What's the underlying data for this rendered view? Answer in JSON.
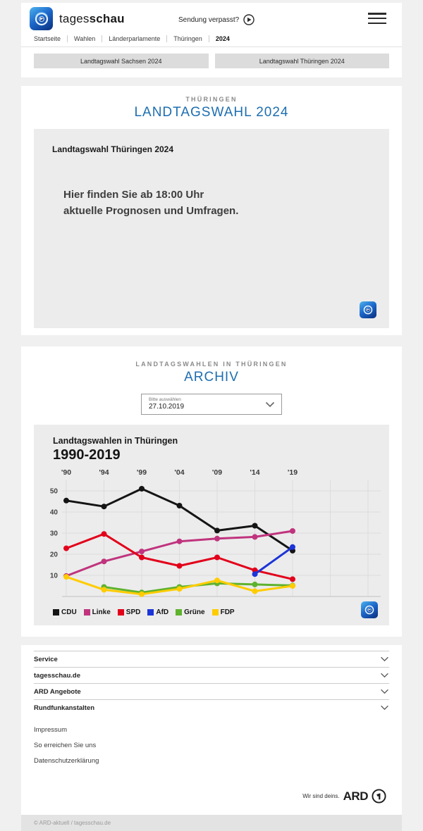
{
  "colors": {
    "brand_blue": "#1d6eb0",
    "page_bg": "#f0f0f0",
    "box_gray": "#ececec"
  },
  "icons": {
    "logo": "tagesschau-globe-icon",
    "play": "play-circle-icon",
    "menu": "hamburger-icon",
    "chevron": "chevron-down-icon",
    "ard": "ard-circle-one-icon"
  },
  "header": {
    "brand_light": "tages",
    "brand_bold": "schau",
    "missed_show": "Sendung verpasst?",
    "nav": [
      "Startseite",
      "Wahlen",
      "Länderparlamente",
      "Thüringen",
      "2024"
    ]
  },
  "quick_links": [
    "Landtagswahl Sachsen 2024",
    "Landtagswahl Thüringen 2024"
  ],
  "election_card": {
    "kicker": "THÜRINGEN",
    "title": "LANDTAGSWAHL 2024",
    "box_title": "Landtagswahl Thüringen 2024",
    "message_line1": "Hier finden Sie ab 18:00 Uhr",
    "message_line2": "aktuelle Prognosen und Umfragen."
  },
  "archive_card": {
    "kicker": "LANDTAGSWAHLEN IN THÜRINGEN",
    "title": "ARCHIV",
    "select": {
      "label": "Bitte auswählen",
      "value": "27.10.2019"
    }
  },
  "chart_data": {
    "type": "line",
    "title": "Landtagswahlen in Thüringen",
    "subtitle": "1990-2019",
    "categories": [
      "'90",
      "'94",
      "'99",
      "'04",
      "'09",
      "'14",
      "'19"
    ],
    "series": [
      {
        "name": "CDU",
        "color": "#141414",
        "values": [
          45.4,
          42.6,
          51.0,
          43.0,
          31.2,
          33.5,
          21.7
        ]
      },
      {
        "name": "Linke",
        "color": "#c0347e",
        "values": [
          9.7,
          16.6,
          21.3,
          26.1,
          27.4,
          28.2,
          31.0
        ]
      },
      {
        "name": "SPD",
        "color": "#e2001a",
        "values": [
          22.8,
          29.6,
          18.5,
          14.5,
          18.5,
          12.4,
          8.2
        ]
      },
      {
        "name": "AfD",
        "color": "#1c34d8",
        "values": [
          null,
          null,
          null,
          null,
          null,
          10.6,
          23.4
        ]
      },
      {
        "name": "Grüne",
        "color": "#5eb22e",
        "values": [
          null,
          4.5,
          1.9,
          4.5,
          6.2,
          5.7,
          5.2
        ]
      },
      {
        "name": "FDP",
        "color": "#ffcc00",
        "values": [
          9.3,
          3.2,
          1.1,
          3.6,
          7.6,
          2.5,
          5.0
        ]
      }
    ],
    "ylabel": "",
    "xlabel": "",
    "ylim": [
      0,
      55
    ],
    "yticks": [
      10,
      20,
      30,
      40,
      50
    ],
    "grid": true,
    "legend_position": "bottom"
  },
  "footer": {
    "accordion": [
      "Service",
      "tagesschau.de",
      "ARD Angebote",
      "Rundfunkanstalten"
    ],
    "links": [
      "Impressum",
      "So erreichen Sie uns",
      "Datenschutzerklärung"
    ],
    "ard_claim": "Wir sind deins.",
    "ard_brand": "ARD",
    "copyright": "© ARD-aktuell / tagesschau.de"
  }
}
